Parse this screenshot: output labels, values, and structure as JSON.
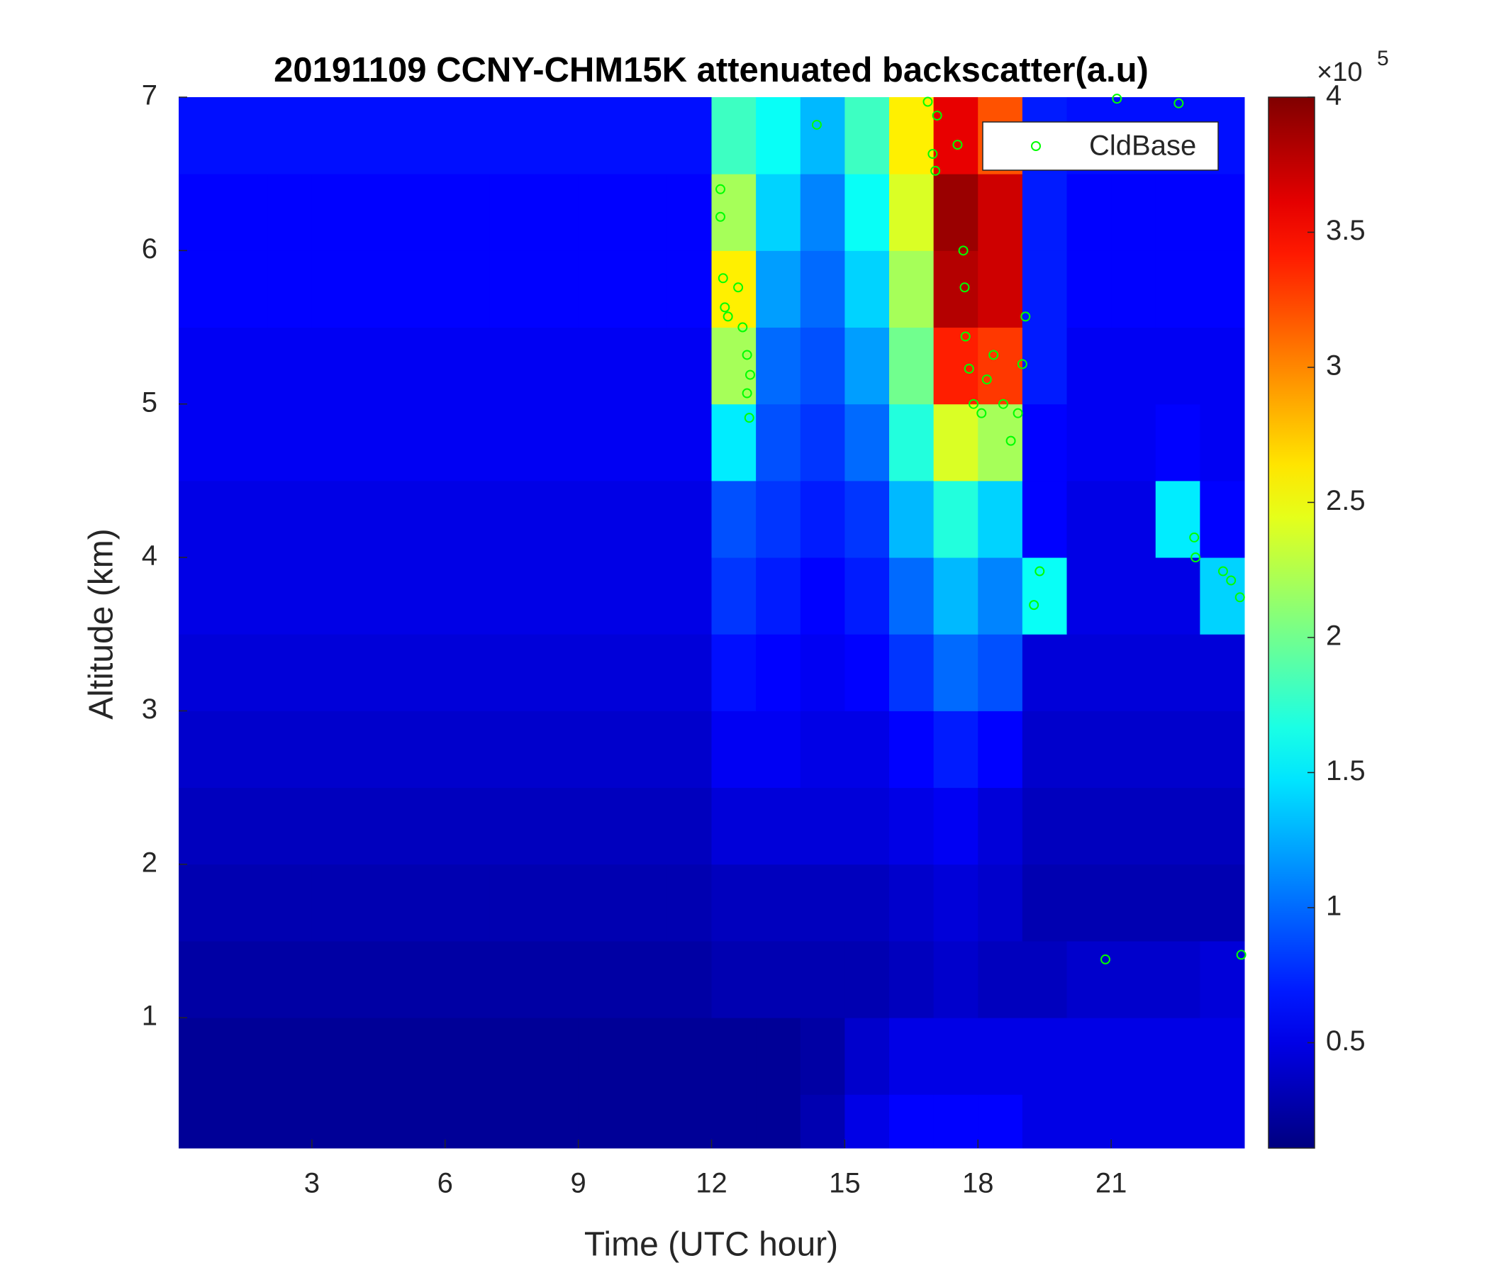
{
  "chart_data": {
    "type": "heatmap",
    "title": "20191109 CCNY-CHM15K attenuated backscatter(a.u)",
    "xlabel": "Time (UTC hour)",
    "ylabel": "Altitude (km)",
    "xlim": [
      0,
      24
    ],
    "ylim": [
      0.15,
      7
    ],
    "xticks": [
      3,
      6,
      9,
      12,
      15,
      18,
      21
    ],
    "yticks": [
      1,
      2,
      3,
      4,
      5,
      6,
      7
    ],
    "x_edges": [
      0,
      1,
      2,
      3,
      4,
      5,
      6,
      7,
      8,
      9,
      10,
      11,
      12,
      13,
      14,
      15,
      16,
      17,
      18,
      19,
      20,
      21,
      22,
      23,
      24
    ],
    "y_edges": [
      0.15,
      0.5,
      1,
      1.5,
      2,
      2.5,
      3,
      3.5,
      4,
      4.5,
      5,
      5.5,
      6,
      6.5,
      7
    ],
    "z": [
      [
        0.2,
        0.2,
        0.2,
        0.2,
        0.2,
        0.2,
        0.2,
        0.2,
        0.2,
        0.2,
        0.2,
        0.2,
        0.2,
        0.2,
        0.3,
        0.5,
        0.6,
        0.6,
        0.6,
        0.5,
        0.5,
        0.5,
        0.5,
        0.5
      ],
      [
        0.2,
        0.2,
        0.2,
        0.2,
        0.2,
        0.2,
        0.2,
        0.2,
        0.2,
        0.2,
        0.2,
        0.2,
        0.2,
        0.2,
        0.25,
        0.4,
        0.5,
        0.5,
        0.5,
        0.5,
        0.5,
        0.5,
        0.5,
        0.5
      ],
      [
        0.25,
        0.25,
        0.25,
        0.25,
        0.25,
        0.25,
        0.25,
        0.25,
        0.25,
        0.25,
        0.25,
        0.25,
        0.3,
        0.3,
        0.3,
        0.3,
        0.35,
        0.4,
        0.35,
        0.35,
        0.4,
        0.4,
        0.4,
        0.45
      ],
      [
        0.3,
        0.3,
        0.3,
        0.3,
        0.3,
        0.3,
        0.3,
        0.3,
        0.3,
        0.3,
        0.3,
        0.3,
        0.35,
        0.35,
        0.35,
        0.35,
        0.4,
        0.45,
        0.4,
        0.3,
        0.3,
        0.3,
        0.3,
        0.3
      ],
      [
        0.35,
        0.35,
        0.35,
        0.35,
        0.35,
        0.35,
        0.35,
        0.35,
        0.35,
        0.35,
        0.35,
        0.35,
        0.45,
        0.45,
        0.45,
        0.45,
        0.5,
        0.55,
        0.45,
        0.35,
        0.35,
        0.35,
        0.35,
        0.35
      ],
      [
        0.4,
        0.4,
        0.4,
        0.4,
        0.4,
        0.4,
        0.4,
        0.4,
        0.4,
        0.4,
        0.4,
        0.4,
        0.55,
        0.55,
        0.5,
        0.5,
        0.6,
        0.7,
        0.6,
        0.4,
        0.4,
        0.4,
        0.4,
        0.4
      ],
      [
        0.45,
        0.45,
        0.45,
        0.45,
        0.45,
        0.45,
        0.45,
        0.45,
        0.45,
        0.45,
        0.45,
        0.45,
        0.65,
        0.6,
        0.55,
        0.6,
        0.8,
        1.0,
        0.9,
        0.45,
        0.45,
        0.45,
        0.45,
        0.45
      ],
      [
        0.5,
        0.5,
        0.5,
        0.5,
        0.5,
        0.5,
        0.5,
        0.5,
        0.5,
        0.5,
        0.5,
        0.5,
        0.8,
        0.7,
        0.6,
        0.7,
        1.0,
        1.3,
        1.1,
        1.6,
        0.5,
        0.5,
        0.5,
        1.4
      ],
      [
        0.5,
        0.5,
        0.5,
        0.5,
        0.5,
        0.5,
        0.5,
        0.5,
        0.5,
        0.5,
        0.5,
        0.5,
        0.9,
        0.8,
        0.7,
        0.8,
        1.3,
        1.7,
        1.4,
        0.6,
        0.5,
        0.5,
        1.5,
        0.6
      ],
      [
        0.55,
        0.55,
        0.55,
        0.55,
        0.55,
        0.55,
        0.55,
        0.55,
        0.55,
        0.55,
        0.55,
        0.55,
        1.5,
        0.9,
        0.8,
        1.0,
        1.7,
        2.4,
        2.2,
        0.6,
        0.55,
        0.55,
        0.6,
        0.55
      ],
      [
        0.55,
        0.55,
        0.55,
        0.55,
        0.55,
        0.55,
        0.55,
        0.55,
        0.55,
        0.55,
        0.55,
        0.55,
        2.2,
        1.0,
        0.9,
        1.2,
        2.0,
        3.4,
        3.3,
        0.7,
        0.55,
        0.55,
        0.55,
        0.55
      ],
      [
        0.6,
        0.6,
        0.6,
        0.6,
        0.6,
        0.6,
        0.6,
        0.6,
        0.6,
        0.6,
        0.6,
        0.6,
        2.6,
        1.2,
        1.0,
        1.4,
        2.2,
        3.8,
        3.7,
        0.7,
        0.6,
        0.6,
        0.6,
        0.6
      ],
      [
        0.6,
        0.6,
        0.6,
        0.6,
        0.6,
        0.6,
        0.6,
        0.6,
        0.6,
        0.6,
        0.6,
        0.6,
        2.2,
        1.4,
        1.1,
        1.6,
        2.4,
        3.9,
        3.7,
        0.7,
        0.6,
        0.6,
        0.6,
        0.6
      ],
      [
        0.65,
        0.65,
        0.65,
        0.65,
        0.65,
        0.65,
        0.65,
        0.65,
        0.65,
        0.65,
        0.65,
        0.65,
        1.8,
        1.6,
        1.3,
        1.8,
        2.6,
        3.6,
        3.2,
        0.7,
        0.65,
        0.65,
        0.65,
        0.65
      ]
    ],
    "colormap": "jet",
    "clim": [
      0.11,
      4
    ],
    "cticks": [
      0.5,
      1,
      1.5,
      2,
      2.5,
      3,
      3.5,
      4
    ],
    "colorbar_scale": {
      "base": "×10",
      "exponent": "5"
    },
    "legend": "upper right",
    "overlay": {
      "type": "scatter",
      "name": "CldBase",
      "color": "#00ff00",
      "x": [
        12.2,
        12.2,
        12.26,
        12.3,
        12.37,
        12.6,
        12.7,
        12.8,
        12.87,
        12.8,
        12.85,
        14.37,
        16.87,
        17.08,
        16.98,
        17.04,
        17.54,
        17.67,
        17.7,
        17.72,
        17.8,
        17.9,
        18.08,
        18.2,
        18.35,
        18.57,
        18.74,
        18.9,
        19.0,
        19.07,
        19.39,
        19.26,
        21.13,
        22.52,
        22.87,
        22.9,
        23.52,
        23.7,
        23.9,
        20.87,
        23.93
      ],
      "y": [
        6.4,
        6.22,
        5.82,
        5.63,
        5.57,
        5.76,
        5.5,
        5.32,
        5.19,
        5.07,
        4.91,
        6.82,
        6.97,
        6.88,
        6.63,
        6.52,
        6.69,
        6.0,
        5.76,
        5.44,
        5.23,
        5.0,
        4.94,
        5.16,
        5.32,
        5.0,
        4.76,
        4.94,
        5.26,
        5.57,
        3.91,
        3.69,
        6.99,
        6.96,
        4.13,
        4.0,
        3.91,
        3.85,
        3.74,
        1.38,
        1.41
      ]
    }
  }
}
